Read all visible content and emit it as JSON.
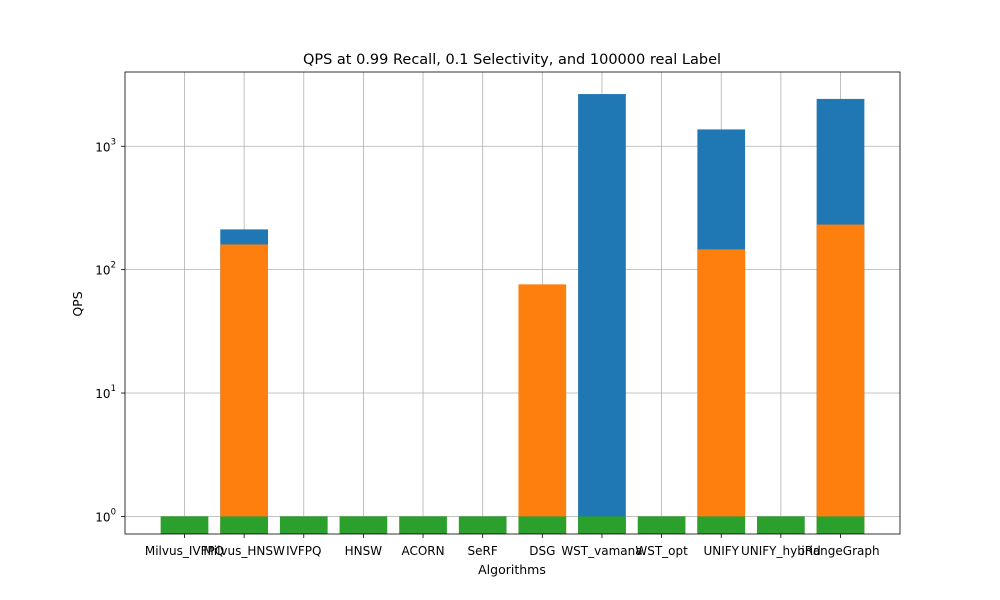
{
  "chart_data": {
    "type": "bar",
    "title": "QPS at 0.99 Recall, 0.1 Selectivity, and 100000 real Label",
    "xlabel": "Algorithms",
    "ylabel": "QPS",
    "yscale": "log",
    "ylim": [
      0.72,
      4000
    ],
    "yticks": [
      {
        "value": 1,
        "base": "10",
        "exp": "0"
      },
      {
        "value": 10,
        "base": "10",
        "exp": "1"
      },
      {
        "value": 100,
        "base": "10",
        "exp": "2"
      },
      {
        "value": 1000,
        "base": "10",
        "exp": "3"
      }
    ],
    "grid": true,
    "categories": [
      "Milvus_IVFPQ",
      "Milvus_HNSW",
      "IVFPQ",
      "HNSW",
      "ACORN",
      "SeRF",
      "DSG",
      "WST_vamana",
      "WST_opt",
      "UNIFY",
      "UNIFY_hybrid",
      "iRangeGraph"
    ],
    "series": [
      {
        "color": "#1f77b4",
        "values": [
          null,
          212,
          null,
          null,
          null,
          null,
          null,
          2650,
          null,
          1370,
          null,
          2420
        ]
      },
      {
        "color": "#ff7f0e",
        "values": [
          null,
          160,
          null,
          null,
          null,
          null,
          76,
          null,
          null,
          146,
          null,
          232
        ]
      },
      {
        "color": "#2ca02c",
        "values": [
          1,
          1,
          1,
          1,
          1,
          1,
          1,
          1,
          1,
          1,
          1,
          1
        ]
      }
    ]
  }
}
